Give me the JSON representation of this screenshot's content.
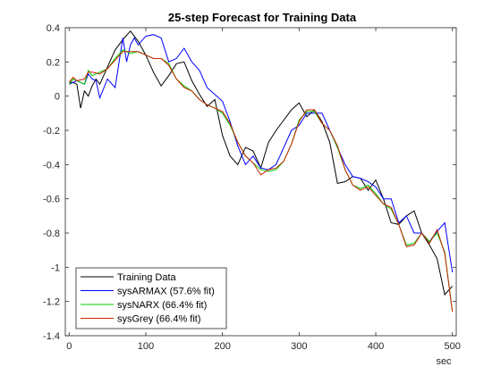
{
  "chart_data": {
    "type": "line",
    "title": "25-step Forecast for Training Data",
    "xlabel": "sec",
    "ylabel": "",
    "xlim": [
      -5,
      505
    ],
    "ylim": [
      -1.4,
      0.4
    ],
    "xticks": [
      0,
      100,
      200,
      300,
      400,
      500
    ],
    "yticks": [
      -1.4,
      -1.2,
      -1,
      -0.8,
      -0.6,
      -0.4,
      -0.2,
      0,
      0.2,
      0.4
    ],
    "xtick_labels": [
      "0",
      "100",
      "200",
      "300",
      "400",
      "500"
    ],
    "ytick_labels": [
      "-1.4",
      "-1.2",
      "-1",
      "-0.8",
      "-0.6",
      "-0.4",
      "-0.2",
      "0",
      "0.2",
      "0.4"
    ],
    "grid": false,
    "legend_position": "bottom-left",
    "series": [
      {
        "name": "Training Data",
        "color": "#000000",
        "x": [
          0,
          5,
          10,
          15,
          20,
          25,
          30,
          35,
          40,
          50,
          60,
          70,
          80,
          90,
          100,
          110,
          120,
          130,
          140,
          150,
          160,
          170,
          180,
          190,
          200,
          210,
          220,
          230,
          240,
          250,
          260,
          270,
          280,
          290,
          300,
          310,
          320,
          330,
          340,
          350,
          360,
          370,
          380,
          390,
          400,
          410,
          420,
          430,
          440,
          450,
          460,
          470,
          480,
          490,
          500
        ],
        "y": [
          0.08,
          0.08,
          0.07,
          -0.07,
          0.03,
          0.0,
          0.06,
          0.1,
          0.07,
          0.17,
          0.27,
          0.33,
          0.38,
          0.32,
          0.24,
          0.14,
          0.06,
          0.12,
          0.19,
          0.2,
          0.09,
          0.01,
          -0.06,
          -0.02,
          -0.23,
          -0.35,
          -0.4,
          -0.3,
          -0.32,
          -0.42,
          -0.27,
          -0.2,
          -0.14,
          -0.08,
          -0.04,
          -0.12,
          -0.08,
          -0.15,
          -0.27,
          -0.51,
          -0.5,
          -0.47,
          -0.48,
          -0.55,
          -0.49,
          -0.6,
          -0.74,
          -0.75,
          -0.7,
          -0.67,
          -0.8,
          -0.87,
          -0.95,
          -1.16,
          -1.11
        ]
      },
      {
        "name": "sysARMAX (57.6% fit)",
        "color": "#0000ff",
        "x": [
          0,
          10,
          20,
          25,
          30,
          35,
          40,
          50,
          60,
          70,
          75,
          80,
          85,
          90,
          100,
          110,
          120,
          130,
          140,
          150,
          160,
          170,
          180,
          190,
          200,
          210,
          220,
          230,
          240,
          250,
          260,
          270,
          280,
          290,
          300,
          310,
          320,
          330,
          340,
          350,
          360,
          370,
          380,
          390,
          400,
          410,
          420,
          430,
          440,
          450,
          460,
          470,
          480,
          490,
          500
        ],
        "y": [
          0.07,
          0.09,
          0.07,
          0.13,
          0.1,
          0.09,
          -0.01,
          0.1,
          0.05,
          0.34,
          0.2,
          0.3,
          0.34,
          0.3,
          0.35,
          0.36,
          0.34,
          0.2,
          0.22,
          0.28,
          0.2,
          0.15,
          0.05,
          0.01,
          -0.03,
          -0.15,
          -0.29,
          -0.4,
          -0.35,
          -0.42,
          -0.43,
          -0.4,
          -0.3,
          -0.2,
          -0.17,
          -0.1,
          -0.1,
          -0.1,
          -0.2,
          -0.3,
          -0.4,
          -0.47,
          -0.48,
          -0.5,
          -0.53,
          -0.6,
          -0.6,
          -0.74,
          -0.7,
          -0.8,
          -0.8,
          -0.85,
          -0.79,
          -0.74,
          -1.03
        ]
      },
      {
        "name": "sysNARX (66.4% fit)",
        "color": "#00cc00",
        "x": [
          0,
          5,
          10,
          20,
          25,
          30,
          40,
          50,
          60,
          70,
          80,
          90,
          100,
          110,
          120,
          130,
          140,
          150,
          160,
          170,
          180,
          190,
          200,
          210,
          220,
          230,
          240,
          250,
          260,
          270,
          280,
          290,
          300,
          310,
          320,
          330,
          340,
          350,
          360,
          370,
          380,
          390,
          400,
          410,
          420,
          430,
          440,
          450,
          460,
          470,
          480,
          490,
          500
        ],
        "y": [
          0.07,
          0.1,
          0.09,
          0.07,
          0.15,
          0.12,
          0.14,
          0.16,
          0.22,
          0.27,
          0.25,
          0.26,
          0.24,
          0.22,
          0.22,
          0.19,
          0.1,
          0.06,
          0.03,
          -0.02,
          -0.05,
          -0.07,
          -0.1,
          -0.17,
          -0.27,
          -0.35,
          -0.39,
          -0.43,
          -0.44,
          -0.43,
          -0.38,
          -0.28,
          -0.14,
          -0.09,
          -0.09,
          -0.16,
          -0.2,
          -0.3,
          -0.43,
          -0.52,
          -0.54,
          -0.52,
          -0.57,
          -0.63,
          -0.66,
          -0.75,
          -0.87,
          -0.86,
          -0.8,
          -0.85,
          -0.8,
          -0.91,
          -1.26
        ]
      },
      {
        "name": "sysGrey (66.4% fit)",
        "color": "#cc2200",
        "x": [
          0,
          5,
          10,
          20,
          25,
          30,
          40,
          50,
          60,
          70,
          80,
          90,
          100,
          110,
          120,
          130,
          140,
          150,
          160,
          170,
          180,
          190,
          200,
          210,
          220,
          230,
          240,
          250,
          260,
          270,
          280,
          290,
          300,
          310,
          320,
          330,
          340,
          350,
          360,
          370,
          380,
          390,
          400,
          410,
          420,
          430,
          440,
          450,
          460,
          470,
          480,
          490,
          500
        ],
        "y": [
          0.08,
          0.11,
          0.09,
          0.1,
          0.14,
          0.14,
          0.13,
          0.16,
          0.21,
          0.26,
          0.26,
          0.26,
          0.24,
          0.22,
          0.22,
          0.18,
          0.1,
          0.05,
          0.03,
          -0.02,
          -0.05,
          -0.07,
          -0.09,
          -0.16,
          -0.27,
          -0.35,
          -0.39,
          -0.46,
          -0.43,
          -0.42,
          -0.38,
          -0.28,
          -0.15,
          -0.08,
          -0.08,
          -0.16,
          -0.2,
          -0.29,
          -0.43,
          -0.52,
          -0.55,
          -0.53,
          -0.58,
          -0.63,
          -0.65,
          -0.75,
          -0.88,
          -0.87,
          -0.8,
          -0.86,
          -0.78,
          -0.92,
          -1.26
        ]
      }
    ]
  }
}
